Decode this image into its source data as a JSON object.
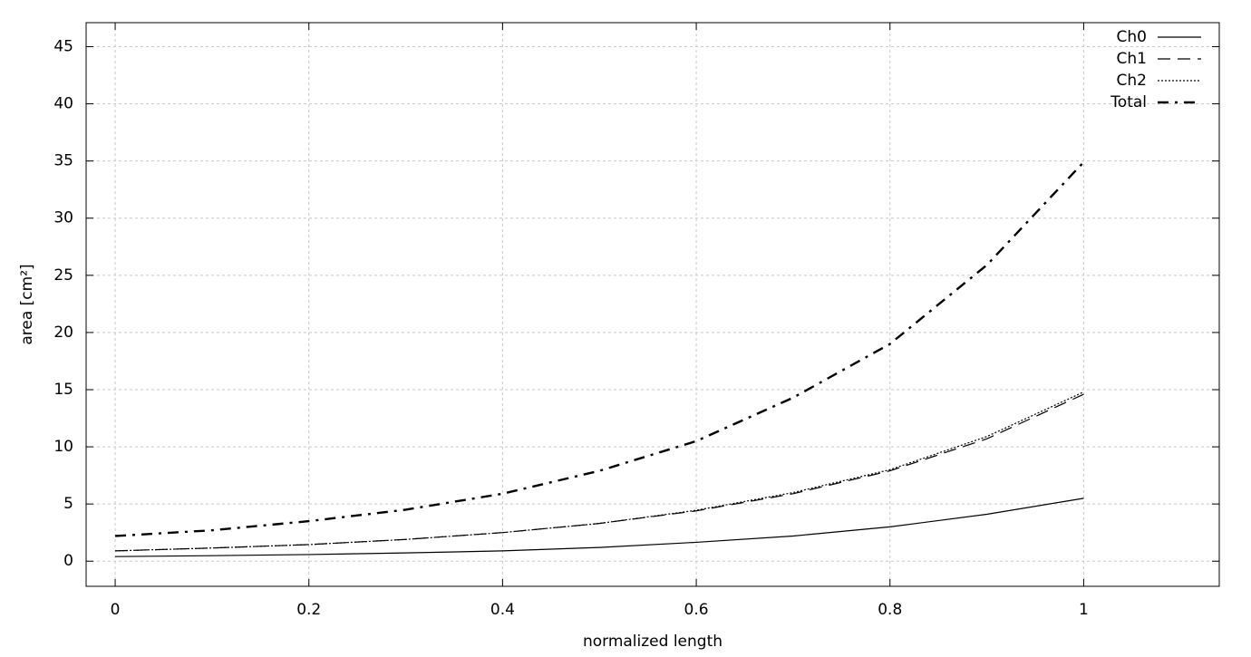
{
  "chart_data": {
    "type": "line",
    "xlabel": "normalized length",
    "ylabel": "area [cm²]",
    "x": [
      0,
      0.1,
      0.2,
      0.3,
      0.4,
      0.5,
      0.6,
      0.7,
      0.8,
      0.9,
      1
    ],
    "series": [
      {
        "name": "Ch0",
        "color": "#000000",
        "dash": "solid",
        "values": [
          0.4,
          0.48,
          0.58,
          0.72,
          0.9,
          1.2,
          1.65,
          2.2,
          3.0,
          4.1,
          5.5
        ]
      },
      {
        "name": "Ch1",
        "color": "#000000",
        "dash": "dashed",
        "values": [
          0.9,
          1.15,
          1.45,
          1.9,
          2.5,
          3.3,
          4.4,
          5.9,
          7.9,
          10.7,
          14.6
        ]
      },
      {
        "name": "Ch2",
        "color": "#000000",
        "dash": "dotted",
        "values": [
          0.9,
          1.15,
          1.45,
          1.9,
          2.5,
          3.3,
          4.45,
          6.0,
          8.0,
          10.9,
          14.8
        ]
      },
      {
        "name": "Total",
        "color": "#000000",
        "dash": "dashdot",
        "values": [
          2.2,
          2.7,
          3.5,
          4.5,
          5.9,
          7.9,
          10.5,
          14.3,
          19.0,
          25.9,
          34.9
        ]
      }
    ],
    "xlim": [
      -0.03,
      1.14
    ],
    "ylim": [
      -2.2,
      47.1
    ],
    "xticks": [
      0,
      0.2,
      0.4,
      0.6,
      0.8,
      1
    ],
    "yticks": [
      0,
      5,
      10,
      15,
      20,
      25,
      30,
      35,
      40,
      45
    ],
    "grid": true,
    "legend": "top-right"
  }
}
